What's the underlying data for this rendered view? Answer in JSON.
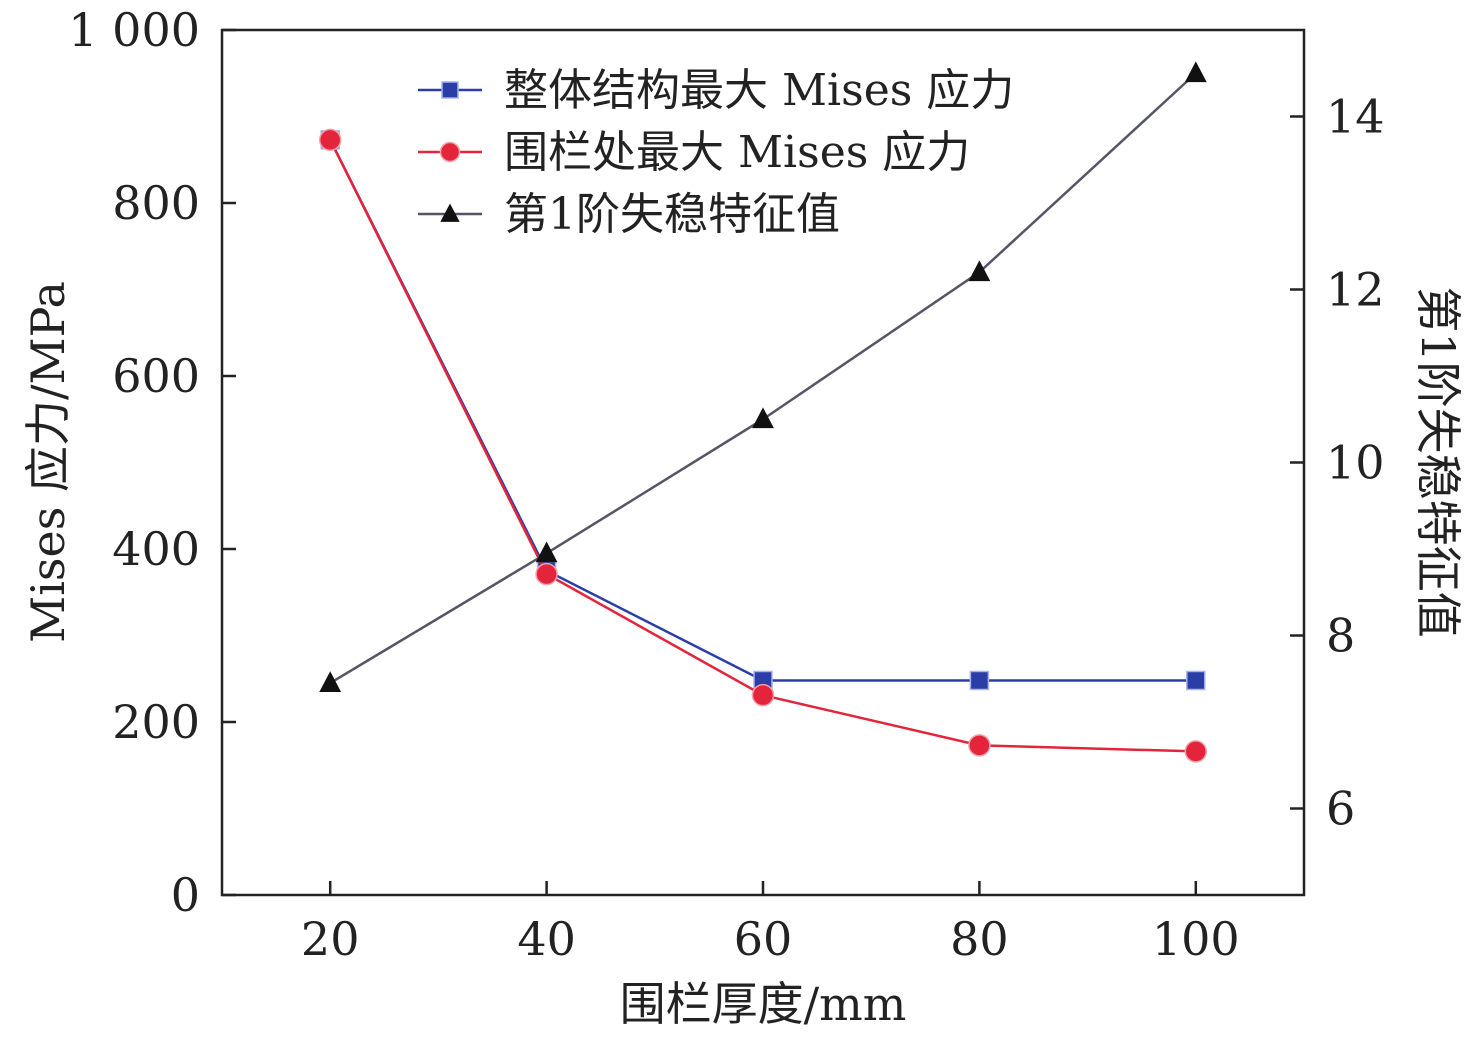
{
  "chart_data": {
    "type": "line",
    "x": [
      20,
      40,
      60,
      80,
      100
    ],
    "xlim": [
      10,
      110
    ],
    "x_ticks": [
      "20",
      "40",
      "60",
      "80",
      "100"
    ],
    "xlabel": "围栏厚度/mm",
    "ylabel_left": "Mises 应力/MPa",
    "ylim_left": [
      0,
      1000
    ],
    "y_ticks_left": [
      "0",
      "200",
      "400",
      "600",
      "800",
      "1 000"
    ],
    "ylabel_right": "第1阶失稳特征值",
    "ylim_right": [
      5,
      15
    ],
    "y_ticks_right": [
      "6",
      "8",
      "10",
      "12",
      "14"
    ],
    "legend_position": "top-center",
    "grid": false,
    "series": [
      {
        "name": "整体结构最大 Mises 应力",
        "axis": "left",
        "color": "#2b3ea8",
        "marker": "square",
        "values": [
          873,
          375,
          248,
          248,
          248
        ]
      },
      {
        "name": "围栏处最大 Mises 应力",
        "axis": "left",
        "color": "#e3243b",
        "marker": "circle",
        "values": [
          873,
          371,
          231,
          173,
          166
        ]
      },
      {
        "name": "第1阶失稳特征值",
        "axis": "right",
        "color": "#111111",
        "line_color": "#555566",
        "marker": "triangle",
        "values": [
          7.45,
          8.95,
          10.5,
          12.2,
          14.5
        ]
      }
    ]
  }
}
